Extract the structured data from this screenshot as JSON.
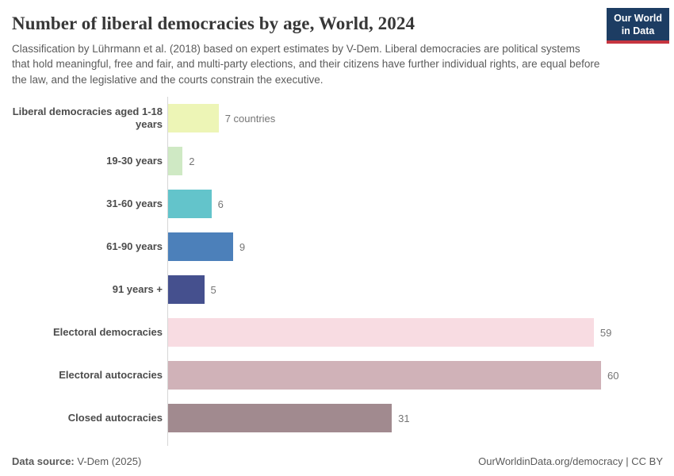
{
  "header": {
    "title": "Number of liberal democracies by age, World, 2024",
    "subtitle": "Classification by Lührmann et al. (2018) based on expert estimates by V-Dem. Liberal democracies are political systems that hold meaningful, free and fair, and multi-party elections, and their citizens have further individual rights, are equal before the law, and the legislative and the courts constrain the executive.",
    "logo": {
      "line1": "Our World",
      "line2": "in Data",
      "bg_color": "#1d3d63",
      "accent_color": "#c63540"
    }
  },
  "chart_data": {
    "type": "bar",
    "orientation": "horizontal",
    "title": "Number of liberal democracies by age, World, 2024",
    "xlabel": "",
    "ylabel": "",
    "grid": false,
    "legend": "none",
    "xlim": [
      0,
      60
    ],
    "categories": [
      "Liberal democracies aged 1-18 years",
      "19-30 years",
      "31-60 years",
      "61-90 years",
      "91 years +",
      "Electoral democracies",
      "Electoral autocracies",
      "Closed autocracies"
    ],
    "values": [
      7,
      2,
      6,
      9,
      5,
      59,
      60,
      31
    ],
    "value_labels": [
      "7 countries",
      "2",
      "6",
      "9",
      "5",
      "59",
      "60",
      "31"
    ],
    "bar_colors": [
      "#edf5b6",
      "#cfe9c4",
      "#63c4cb",
      "#4c80ba",
      "#45508e",
      "#f8dce2",
      "#d0b2b8",
      "#a18a8f"
    ],
    "axis_color": "#d6d6d6"
  },
  "footer": {
    "datasource_label": "Data source:",
    "datasource_value": " V-Dem (2025)",
    "link": "OurWorldinData.org/democracy | CC BY"
  }
}
